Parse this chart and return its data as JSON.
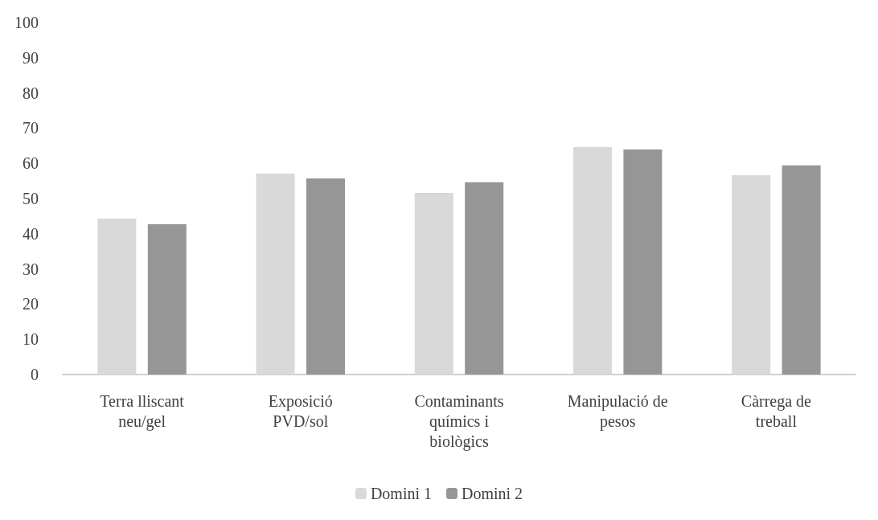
{
  "chart_data": {
    "type": "bar",
    "categories": [
      "Terra lliscant\nneu/gel",
      "Exposició\nPVD/sol",
      "Contaminants\nquímics i\nbiològics",
      "Manipulació de\npesos",
      "Càrrega de\ntreball"
    ],
    "series": [
      {
        "name": "Domini 1",
        "color": "#d9d9d9",
        "values": [
          44.3,
          57.1,
          51.6,
          64.6,
          56.6
        ]
      },
      {
        "name": "Domini 2",
        "color": "#969696",
        "values": [
          42.7,
          55.7,
          54.6,
          63.9,
          59.4
        ]
      }
    ],
    "ylim": [
      0,
      100
    ],
    "yticks": [
      0,
      10,
      20,
      30,
      40,
      50,
      60,
      70,
      80,
      90,
      100
    ],
    "grid": false,
    "legend": "bottom"
  }
}
